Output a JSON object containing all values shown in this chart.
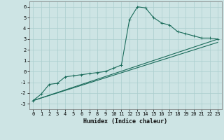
{
  "xlabel": "Humidex (Indice chaleur)",
  "bg_color": "#cde4e4",
  "grid_color": "#aacece",
  "line_color": "#1a6b5a",
  "xlim": [
    -0.5,
    23.5
  ],
  "ylim": [
    -3.5,
    6.5
  ],
  "xticks": [
    0,
    1,
    2,
    3,
    4,
    5,
    6,
    7,
    8,
    9,
    10,
    11,
    12,
    13,
    14,
    15,
    16,
    17,
    18,
    19,
    20,
    21,
    22,
    23
  ],
  "yticks": [
    -3,
    -2,
    -1,
    0,
    1,
    2,
    3,
    4,
    5,
    6
  ],
  "line1_x": [
    0,
    1,
    2,
    3,
    4,
    5,
    6,
    7,
    8,
    9,
    10,
    11,
    12,
    13,
    14,
    15,
    16,
    17,
    18,
    19,
    20,
    21,
    22,
    23
  ],
  "line1_y": [
    -2.7,
    -2.1,
    -1.2,
    -1.1,
    -0.5,
    -0.4,
    -0.3,
    -0.2,
    -0.1,
    0.0,
    0.3,
    0.6,
    4.8,
    6.0,
    5.9,
    5.0,
    4.5,
    4.3,
    3.7,
    3.5,
    3.3,
    3.1,
    3.1,
    3.0
  ],
  "line2_x": [
    0,
    23
  ],
  "line2_y": [
    -2.7,
    3.0
  ],
  "line3_x": [
    0,
    23
  ],
  "line3_y": [
    -2.7,
    2.7
  ],
  "tick_fontsize": 5.0,
  "xlabel_fontsize": 6.0
}
